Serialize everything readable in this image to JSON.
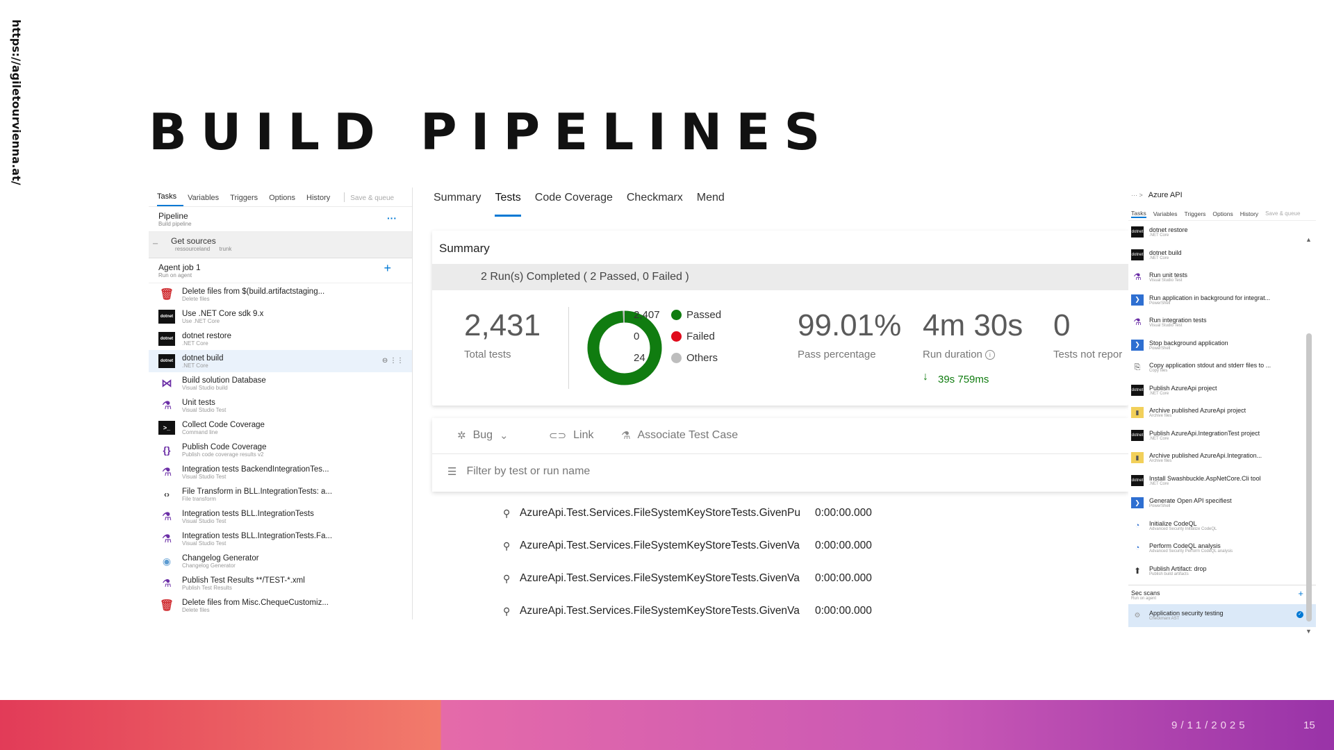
{
  "slide": {
    "side_url": "https://agiletourvienna.at/",
    "title": "BUILD PIPELINES",
    "date": "9/11/2025",
    "page": "15"
  },
  "left_panel": {
    "tabs": [
      "Tasks",
      "Variables",
      "Triggers",
      "Options",
      "History"
    ],
    "save_label": "Save & queue",
    "pipeline": {
      "title": "Pipeline",
      "subtitle": "Build pipeline"
    },
    "get_sources": {
      "title": "Get sources",
      "repo": "ressourceland",
      "branch": "trunk"
    },
    "agent_job": {
      "title": "Agent job 1",
      "subtitle": "Run on agent"
    },
    "tasks": [
      {
        "title": "Delete files from $(build.artifactstaging...",
        "subtitle": "Delete files",
        "icon": "trash-icon"
      },
      {
        "title": "Use .NET Core sdk 9.x",
        "subtitle": "Use .NET Core",
        "icon": "dotnet-icon"
      },
      {
        "title": "dotnet restore",
        "subtitle": ".NET Core",
        "icon": "dotnet-icon"
      },
      {
        "title": "dotnet build",
        "subtitle": ".NET Core",
        "icon": "dotnet-icon"
      },
      {
        "title": "Build solution Database",
        "subtitle": "Visual Studio build",
        "icon": "visual-studio-icon"
      },
      {
        "title": "Unit tests",
        "subtitle": "Visual Studio Test",
        "icon": "flask-icon"
      },
      {
        "title": "Collect Code Coverage",
        "subtitle": "Command line",
        "icon": "command-line-icon"
      },
      {
        "title": "Publish Code Coverage",
        "subtitle": "Publish code coverage results v2",
        "icon": "braces-icon"
      },
      {
        "title": "Integration tests BackendIntegrationTes...",
        "subtitle": "Visual Studio Test",
        "icon": "flask-icon"
      },
      {
        "title": "File Transform in BLL.IntegrationTests: a...",
        "subtitle": "File transform",
        "icon": "file-transform-icon"
      },
      {
        "title": "Integration tests BLL.IntegrationTests",
        "subtitle": "Visual Studio Test",
        "icon": "flask-icon"
      },
      {
        "title": "Integration tests BLL.IntegrationTests.Fa...",
        "subtitle": "Visual Studio Test",
        "icon": "flask-icon"
      },
      {
        "title": "Changelog Generator",
        "subtitle": "Changelog Generator",
        "icon": "changelog-icon"
      },
      {
        "title": "Publish Test Results **/TEST-*.xml",
        "subtitle": "Publish Test Results",
        "icon": "publish-test-icon"
      },
      {
        "title": "Delete files from Misc.ChequeCustomiz...",
        "subtitle": "Delete files",
        "icon": "trash-icon"
      }
    ]
  },
  "tests_view": {
    "tabs": [
      "Summary",
      "Tests",
      "Code Coverage",
      "Checkmarx",
      "Mend"
    ],
    "active_tab": "Tests",
    "summary_title": "Summary",
    "runs_completed": "2 Run(s) Completed ( 2 Passed, 0 Failed )",
    "total_tests": "2,431",
    "total_tests_label": "Total tests",
    "legend": [
      {
        "value": "2,407",
        "label": "Passed",
        "color": "#107c10"
      },
      {
        "value": "0",
        "label": "Failed",
        "color": "#e00b1c"
      },
      {
        "value": "24",
        "label": "Others",
        "color": "#bdbdbd"
      }
    ],
    "donut": {
      "passed": 2407,
      "failed": 0,
      "others": 24
    },
    "pass_percentage": "99.01%",
    "pass_percentage_label": "Pass percentage",
    "run_duration": "4m 30s",
    "run_duration_label": "Run duration",
    "run_duration_delta": "39s 759ms",
    "not_reported": "0",
    "not_reported_label": "Tests not repor",
    "actions": {
      "bug": "Bug",
      "link": "Link",
      "associate": "Associate Test Case"
    },
    "filter_placeholder": "Filter by test or run name",
    "results": [
      {
        "name": "AzureApi.Test.Services.FileSystemKeyStoreTests.GivenPu",
        "duration": "0:00:00.000"
      },
      {
        "name": "AzureApi.Test.Services.FileSystemKeyStoreTests.GivenVa",
        "duration": "0:00:00.000"
      },
      {
        "name": "AzureApi.Test.Services.FileSystemKeyStoreTests.GivenVa",
        "duration": "0:00:00.000"
      },
      {
        "name": "AzureApi.Test.Services.FileSystemKeyStoreTests.GivenVa",
        "duration": "0:00:00.000"
      }
    ]
  },
  "right_panel": {
    "breadcrumb": "··· >",
    "title": "Azure API",
    "tabs": [
      "Tasks",
      "Variables",
      "Triggers",
      "Options",
      "History"
    ],
    "save_label": "Save & queue",
    "tasks": [
      {
        "title": "dotnet restore",
        "subtitle": ".NET Core",
        "icon": "dotnet-icon"
      },
      {
        "title": "dotnet build",
        "subtitle": ".NET Core",
        "icon": "dotnet-icon"
      },
      {
        "title": "Run unit tests",
        "subtitle": "Visual Studio Test",
        "icon": "flask-icon"
      },
      {
        "title": "Run application in background for integrat...",
        "subtitle": "PowerShell",
        "icon": "powershell-icon"
      },
      {
        "title": "Run integration tests",
        "subtitle": "Visual Studio Test",
        "icon": "flask-icon"
      },
      {
        "title": "Stop background application",
        "subtitle": "PowerShell",
        "icon": "powershell-icon"
      },
      {
        "title": "Copy application stdout and stderr files to ...",
        "subtitle": "Copy files",
        "icon": "copy-icon"
      },
      {
        "title": "Publish AzureApi project",
        "subtitle": ".NET Core",
        "icon": "dotnet-icon"
      },
      {
        "title": "Archive published AzureApi project",
        "subtitle": "Archive files",
        "icon": "archive-icon"
      },
      {
        "title": "Publish AzureApi.IntegrationTest project",
        "subtitle": ".NET Core",
        "icon": "dotnet-icon"
      },
      {
        "title": "Archive published AzureApi.Integration...",
        "subtitle": "Archive files",
        "icon": "archive-icon"
      },
      {
        "title": "Install Swashbuckle.AspNetCore.Cli tool",
        "subtitle": ".NET Core",
        "icon": "dotnet-icon"
      },
      {
        "title": "Generate Open API specifiest",
        "subtitle": "PowerShell",
        "icon": "powershell-icon"
      },
      {
        "title": "Initialize CodeQL",
        "subtitle": "Advanced Security Initialize CodeQL",
        "icon": "codeql-icon"
      },
      {
        "title": "Perform CodeQL analysis",
        "subtitle": "Advanced Security Perform CodeQL analysis",
        "icon": "codeql-icon"
      },
      {
        "title": "Publish Artifact: drop",
        "subtitle": "Publish build artifacts",
        "icon": "upload-icon"
      }
    ],
    "sec_scans": {
      "title": "Sec scans",
      "subtitle": "Run on agent"
    },
    "security_task": {
      "title": "Application security testing",
      "subtitle": "Checkmarx AST"
    }
  }
}
